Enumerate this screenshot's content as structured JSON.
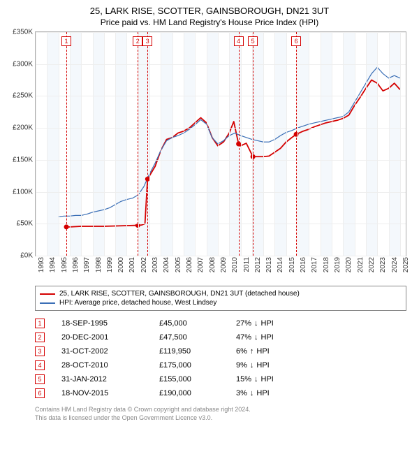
{
  "title": "25, LARK RISE, SCOTTER, GAINSBOROUGH, DN21 3UT",
  "subtitle": "Price paid vs. HM Land Registry's House Price Index (HPI)",
  "chart": {
    "type": "line",
    "background_color": "#ffffff",
    "alt_band_color": "#f4f8fc",
    "grid_color": "#eeeeee",
    "axis_color": "#aaaaaa",
    "xlim": [
      1993,
      2025.5
    ],
    "ylim": [
      0,
      350000
    ],
    "ytick_step": 50000,
    "yticks": [
      "£0K",
      "£50K",
      "£100K",
      "£150K",
      "£200K",
      "£250K",
      "£300K",
      "£350K"
    ],
    "xticks": [
      1993,
      1994,
      1995,
      1996,
      1997,
      1998,
      1999,
      2000,
      2001,
      2002,
      2003,
      2004,
      2005,
      2006,
      2007,
      2008,
      2009,
      2010,
      2011,
      2012,
      2013,
      2014,
      2015,
      2016,
      2017,
      2018,
      2019,
      2020,
      2021,
      2022,
      2023,
      2024,
      2025
    ],
    "alt_bands": [
      [
        1994,
        1995
      ],
      [
        1996,
        1997
      ],
      [
        1998,
        1999
      ],
      [
        2000,
        2001
      ],
      [
        2002,
        2003
      ],
      [
        2004,
        2005
      ],
      [
        2006,
        2007
      ],
      [
        2008,
        2009
      ],
      [
        2010,
        2011
      ],
      [
        2012,
        2013
      ],
      [
        2014,
        2015
      ],
      [
        2016,
        2017
      ],
      [
        2018,
        2019
      ],
      [
        2020,
        2021
      ],
      [
        2022,
        2023
      ],
      [
        2024,
        2025
      ]
    ],
    "series": [
      {
        "name": "25, LARK RISE, SCOTTER, GAINSBOROUGH, DN21 3UT (detached house)",
        "color": "#d40000",
        "line_width": 1.8,
        "points": [
          [
            1995.7,
            45000
          ],
          [
            1996,
            45000
          ],
          [
            1997,
            46000
          ],
          [
            1998,
            46000
          ],
          [
            1999,
            46000
          ],
          [
            2000,
            46500
          ],
          [
            2001,
            47000
          ],
          [
            2001.97,
            47500
          ],
          [
            2002.3,
            48000
          ],
          [
            2002.6,
            50000
          ],
          [
            2002.83,
            119950
          ],
          [
            2003.5,
            140000
          ],
          [
            2004,
            165000
          ],
          [
            2004.5,
            182000
          ],
          [
            2005,
            185000
          ],
          [
            2005.5,
            192000
          ],
          [
            2006,
            195000
          ],
          [
            2006.5,
            200000
          ],
          [
            2007,
            208000
          ],
          [
            2007.5,
            216000
          ],
          [
            2008,
            208000
          ],
          [
            2008.5,
            185000
          ],
          [
            2009,
            172000
          ],
          [
            2009.5,
            178000
          ],
          [
            2010,
            192000
          ],
          [
            2010.4,
            210000
          ],
          [
            2010.82,
            175000
          ],
          [
            2011,
            172000
          ],
          [
            2011.5,
            176000
          ],
          [
            2012.08,
            155000
          ],
          [
            2012.5,
            155000
          ],
          [
            2013,
            155000
          ],
          [
            2013.5,
            156000
          ],
          [
            2014,
            162000
          ],
          [
            2014.5,
            168000
          ],
          [
            2015,
            178000
          ],
          [
            2015.5,
            185000
          ],
          [
            2015.88,
            190000
          ],
          [
            2016.5,
            195000
          ],
          [
            2017,
            198000
          ],
          [
            2017.5,
            202000
          ],
          [
            2018,
            205000
          ],
          [
            2018.5,
            208000
          ],
          [
            2019,
            210000
          ],
          [
            2019.5,
            212000
          ],
          [
            2020,
            215000
          ],
          [
            2020.5,
            220000
          ],
          [
            2021,
            235000
          ],
          [
            2021.5,
            248000
          ],
          [
            2022,
            262000
          ],
          [
            2022.5,
            275000
          ],
          [
            2023,
            270000
          ],
          [
            2023.5,
            258000
          ],
          [
            2024,
            262000
          ],
          [
            2024.5,
            270000
          ],
          [
            2025,
            260000
          ]
        ]
      },
      {
        "name": "HPI: Average price, detached house, West Lindsey",
        "color": "#3b6fb6",
        "line_width": 1.2,
        "points": [
          [
            1995,
            61000
          ],
          [
            1995.5,
            62000
          ],
          [
            1996,
            62000
          ],
          [
            1996.5,
            63000
          ],
          [
            1997,
            63000
          ],
          [
            1997.5,
            65000
          ],
          [
            1998,
            68000
          ],
          [
            1998.5,
            70000
          ],
          [
            1999,
            72000
          ],
          [
            1999.5,
            75000
          ],
          [
            2000,
            80000
          ],
          [
            2000.5,
            85000
          ],
          [
            2001,
            88000
          ],
          [
            2001.5,
            90000
          ],
          [
            2002,
            95000
          ],
          [
            2002.5,
            108000
          ],
          [
            2003,
            128000
          ],
          [
            2003.5,
            145000
          ],
          [
            2004,
            165000
          ],
          [
            2004.5,
            180000
          ],
          [
            2005,
            185000
          ],
          [
            2005.5,
            188000
          ],
          [
            2006,
            192000
          ],
          [
            2006.5,
            198000
          ],
          [
            2007,
            205000
          ],
          [
            2007.5,
            213000
          ],
          [
            2008,
            206000
          ],
          [
            2008.5,
            185000
          ],
          [
            2009,
            175000
          ],
          [
            2009.5,
            180000
          ],
          [
            2010,
            188000
          ],
          [
            2010.5,
            192000
          ],
          [
            2011,
            188000
          ],
          [
            2011.5,
            185000
          ],
          [
            2012,
            182000
          ],
          [
            2012.5,
            180000
          ],
          [
            2013,
            178000
          ],
          [
            2013.5,
            178000
          ],
          [
            2014,
            182000
          ],
          [
            2014.5,
            188000
          ],
          [
            2015,
            193000
          ],
          [
            2015.5,
            196000
          ],
          [
            2016,
            200000
          ],
          [
            2016.5,
            203000
          ],
          [
            2017,
            206000
          ],
          [
            2017.5,
            208000
          ],
          [
            2018,
            210000
          ],
          [
            2018.5,
            212000
          ],
          [
            2019,
            214000
          ],
          [
            2019.5,
            216000
          ],
          [
            2020,
            218000
          ],
          [
            2020.5,
            225000
          ],
          [
            2021,
            240000
          ],
          [
            2021.5,
            255000
          ],
          [
            2022,
            270000
          ],
          [
            2022.5,
            285000
          ],
          [
            2023,
            295000
          ],
          [
            2023.5,
            285000
          ],
          [
            2024,
            278000
          ],
          [
            2024.5,
            282000
          ],
          [
            2025,
            278000
          ]
        ]
      }
    ],
    "sale_points": [
      {
        "x": 1995.7,
        "y": 45000
      },
      {
        "x": 2001.97,
        "y": 47500
      },
      {
        "x": 2002.83,
        "y": 119950
      },
      {
        "x": 2010.82,
        "y": 175000
      },
      {
        "x": 2012.08,
        "y": 155000
      },
      {
        "x": 2015.88,
        "y": 190000
      }
    ],
    "markers": [
      {
        "n": "1",
        "x": 1995.7,
        "color": "#d40000"
      },
      {
        "n": "2",
        "x": 2001.97,
        "color": "#d40000"
      },
      {
        "n": "3",
        "x": 2002.83,
        "color": "#d40000"
      },
      {
        "n": "4",
        "x": 2010.82,
        "color": "#d40000"
      },
      {
        "n": "5",
        "x": 2012.08,
        "color": "#d40000"
      },
      {
        "n": "6",
        "x": 2015.88,
        "color": "#d40000"
      }
    ]
  },
  "legend": {
    "items": [
      {
        "label": "25, LARK RISE, SCOTTER, GAINSBOROUGH, DN21 3UT (detached house)",
        "color": "#d40000"
      },
      {
        "label": "HPI: Average price, detached house, West Lindsey",
        "color": "#3b6fb6"
      }
    ]
  },
  "table": {
    "marker_color": "#d40000",
    "rows": [
      {
        "n": "1",
        "date": "18-SEP-1995",
        "price": "£45,000",
        "delta": "27%",
        "dir": "down",
        "vs": "HPI"
      },
      {
        "n": "2",
        "date": "20-DEC-2001",
        "price": "£47,500",
        "delta": "47%",
        "dir": "down",
        "vs": "HPI"
      },
      {
        "n": "3",
        "date": "31-OCT-2002",
        "price": "£119,950",
        "delta": "6%",
        "dir": "up",
        "vs": "HPI"
      },
      {
        "n": "4",
        "date": "28-OCT-2010",
        "price": "£175,000",
        "delta": "9%",
        "dir": "down",
        "vs": "HPI"
      },
      {
        "n": "5",
        "date": "31-JAN-2012",
        "price": "£155,000",
        "delta": "15%",
        "dir": "down",
        "vs": "HPI"
      },
      {
        "n": "6",
        "date": "18-NOV-2015",
        "price": "£190,000",
        "delta": "3%",
        "dir": "down",
        "vs": "HPI"
      }
    ]
  },
  "footer": {
    "line1": "Contains HM Land Registry data © Crown copyright and database right 2024.",
    "line2": "This data is licensed under the Open Government Licence v3.0."
  }
}
